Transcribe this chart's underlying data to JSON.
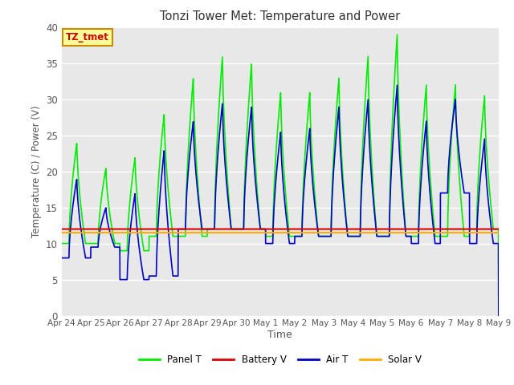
{
  "title": "Tonzi Tower Met: Temperature and Power",
  "xlabel": "Time",
  "ylabel": "Temperature (C) / Power (V)",
  "ylim": [
    0,
    40
  ],
  "xlim": [
    0,
    15
  ],
  "fig_bg_color": "#ffffff",
  "plot_bg_color": "#e8e8e8",
  "grid_color": "#ffffff",
  "legend_box_label": "TZ_tmet",
  "legend_box_fg": "#ffff99",
  "legend_box_edge": "#cc8800",
  "legend_box_text": "#cc0000",
  "series": {
    "panel_t": {
      "color": "#00ee00",
      "label": "Panel T",
      "linewidth": 1.2
    },
    "battery_v": {
      "color": "#dd0000",
      "label": "Battery V",
      "linewidth": 1.5
    },
    "air_t": {
      "color": "#0000cc",
      "label": "Air T",
      "linewidth": 1.2
    },
    "solar_v": {
      "color": "#ffaa00",
      "label": "Solar V",
      "linewidth": 1.5
    }
  },
  "xtick_labels": [
    "Apr 24",
    "Apr 25",
    "Apr 26",
    "Apr 27",
    "Apr 28",
    "Apr 29",
    "Apr 30",
    "May 1",
    "May 2",
    "May 3",
    "May 4",
    "May 5",
    "May 6",
    "May 7",
    "May 8",
    "May 9"
  ],
  "ytick_values": [
    0,
    5,
    10,
    15,
    20,
    25,
    30,
    35,
    40
  ],
  "panel_peaks": [
    24,
    20.5,
    22,
    28,
    33,
    36,
    35,
    31,
    31,
    33,
    36,
    39,
    32,
    32,
    30.5
  ],
  "panel_nights": [
    10,
    10,
    9,
    11,
    11,
    12,
    12,
    11,
    11,
    11,
    11,
    11,
    11,
    11,
    12
  ],
  "air_peaks": [
    19,
    15,
    17,
    23,
    27,
    29.5,
    29,
    25.5,
    26,
    29,
    30,
    32,
    27,
    30,
    24.5
  ],
  "air_nights": [
    8,
    9.5,
    5,
    5.5,
    12,
    12,
    12,
    10,
    11,
    11,
    11,
    11,
    10,
    17,
    10
  ],
  "battery_level": 12.0,
  "solar_level": 11.5
}
